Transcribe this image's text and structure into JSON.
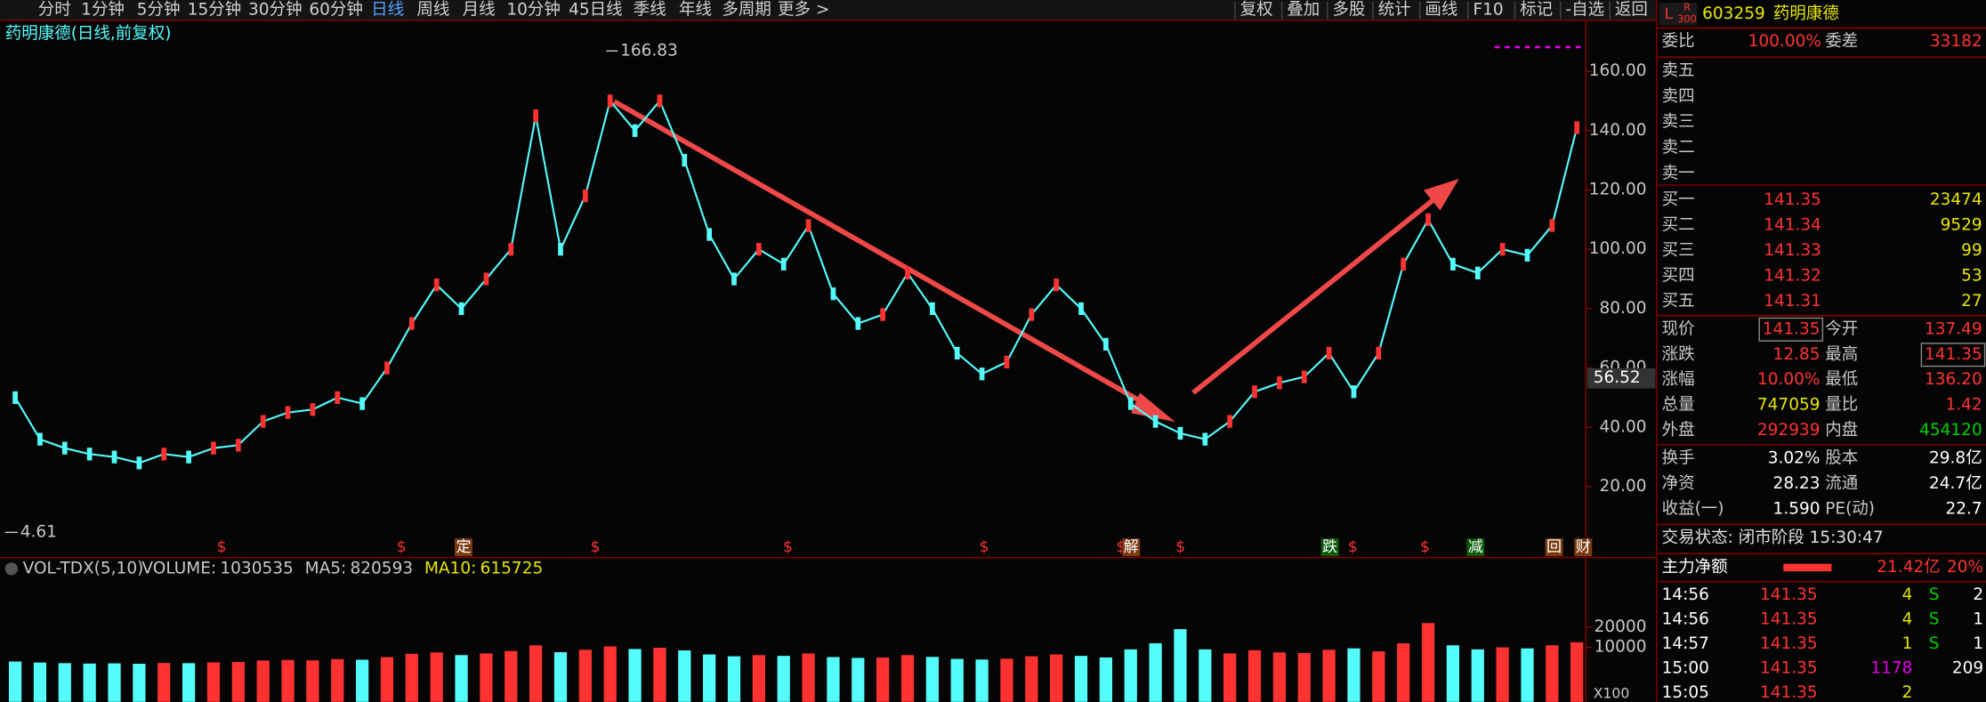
{
  "toolbar": {
    "periods": [
      "分时",
      "1分钟",
      "5分钟",
      "15分钟",
      "30分钟",
      "60分钟",
      "日线",
      "周线",
      "月线",
      "10分钟",
      "45日线",
      "季线",
      "年线",
      "多周期",
      "更多 >"
    ],
    "tools": [
      "复权",
      "叠加",
      "多股",
      "统计",
      "画线",
      "F10",
      "标记",
      "-自选",
      "返回"
    ]
  },
  "chart_data": [
    {
      "type": "line",
      "title": "药明康德(日线,前复权)",
      "color": "#54fcfc",
      "values": [
        50,
        36,
        33,
        31,
        30,
        28,
        31,
        30,
        33,
        34,
        42,
        45,
        46,
        50,
        48,
        60,
        75,
        88,
        80,
        90,
        100,
        145,
        100,
        118,
        150,
        140,
        150,
        130,
        105,
        90,
        100,
        95,
        108,
        85,
        75,
        78,
        92,
        80,
        65,
        58,
        62,
        78,
        88,
        80,
        68,
        48,
        42,
        38,
        36,
        42,
        52,
        55,
        57,
        65,
        52,
        65,
        95,
        110,
        95,
        92,
        100,
        98,
        108,
        141
      ],
      "ylim": [
        0,
        172
      ],
      "yticks": [
        {
          "value": 20,
          "label": "20.00"
        },
        {
          "value": 40,
          "label": "40.00"
        },
        {
          "value": 60,
          "label": "60.00"
        },
        {
          "value": 80,
          "label": "80.00"
        },
        {
          "value": 100,
          "label": "100.00"
        },
        {
          "value": 120,
          "label": "120.00"
        },
        {
          "value": 140,
          "label": "140.00"
        },
        {
          "value": 160,
          "label": "160.00"
        }
      ],
      "high": 166.83,
      "low": 4.61,
      "cursor": {
        "value": 56.52,
        "label": "56.52"
      },
      "markers": [
        "$",
        "$",
        "定",
        "$",
        "$",
        "$",
        "$",
        "解",
        "$",
        "跌",
        "$",
        "$",
        "减",
        "回",
        "财"
      ]
    },
    {
      "type": "bar",
      "indicator": "VOL-TDX(5,10)",
      "stats": [
        {
          "label": "VOLUME:",
          "value": 1030535
        },
        {
          "label": "MA5:",
          "value": 820593
        },
        {
          "label": "MA10:",
          "value": 615725
        }
      ],
      "values": [
        3000,
        2500,
        2200,
        2000,
        2100,
        1900,
        2300,
        2200,
        2600,
        2800,
        3500,
        3800,
        3600,
        4200,
        3900,
        5200,
        6800,
        7500,
        6200,
        7000,
        8200,
        11000,
        7600,
        8800,
        10500,
        9200,
        9800,
        8500,
        6500,
        5600,
        6200,
        5800,
        7000,
        5200,
        4800,
        5000,
        6200,
        5300,
        4300,
        4000,
        4400,
        5600,
        6500,
        5800,
        5000,
        9000,
        12000,
        19000,
        9000,
        7000,
        8600,
        7500,
        7200,
        8800,
        9500,
        8000,
        12000,
        22000,
        11000,
        9000,
        10000,
        9500,
        11000,
        12500
      ],
      "ylim": [
        0,
        40000
      ],
      "yticks": [
        10000,
        20000
      ],
      "unit": "X100"
    }
  ],
  "quote": {
    "badge_l": "L",
    "badge_r": "R",
    "badge_n": "300",
    "code": "603259",
    "name": "药明康德",
    "weibi": [
      "委比",
      "100.00%",
      "委差",
      "33182"
    ],
    "sell": [
      "卖五",
      "卖四",
      "卖三",
      "卖二",
      "卖一"
    ],
    "buy": [
      [
        "买一",
        "141.35",
        "23474"
      ],
      [
        "买二",
        "141.34",
        "9529"
      ],
      [
        "买三",
        "141.33",
        "99"
      ],
      [
        "买四",
        "141.32",
        "53"
      ],
      [
        "买五",
        "141.31",
        "27"
      ]
    ],
    "stats": [
      [
        "现价",
        "141.35",
        "今开",
        "137.49"
      ],
      [
        "涨跌",
        "12.85",
        "最高",
        "141.35"
      ],
      [
        "涨幅",
        "10.00%",
        "最低",
        "136.20"
      ],
      [
        "总量",
        "747059",
        "量比",
        "1.42"
      ],
      [
        "外盘",
        "292939",
        "内盘",
        "454120"
      ]
    ],
    "stats2": [
      [
        "换手",
        "3.02%",
        "股本",
        "29.8亿"
      ],
      [
        "净资",
        "28.23",
        "流通",
        "24.7亿"
      ],
      [
        "收益(一)",
        "1.590",
        "PE(动)",
        "22.7"
      ]
    ],
    "status": "交易状态: 闭市阶段 15:30:47",
    "main_force": [
      "主力净额",
      "21.42亿",
      "20%"
    ],
    "ticks": [
      [
        "14:56",
        "141.35",
        "4",
        "S",
        "2"
      ],
      [
        "14:56",
        "141.35",
        "4",
        "S",
        "1"
      ],
      [
        "14:57",
        "141.35",
        "1",
        "S",
        "1"
      ],
      [
        "15:00",
        "141.35",
        "1178",
        "",
        "209"
      ],
      [
        "15:05",
        "141.35",
        "2",
        "",
        ""
      ]
    ]
  }
}
